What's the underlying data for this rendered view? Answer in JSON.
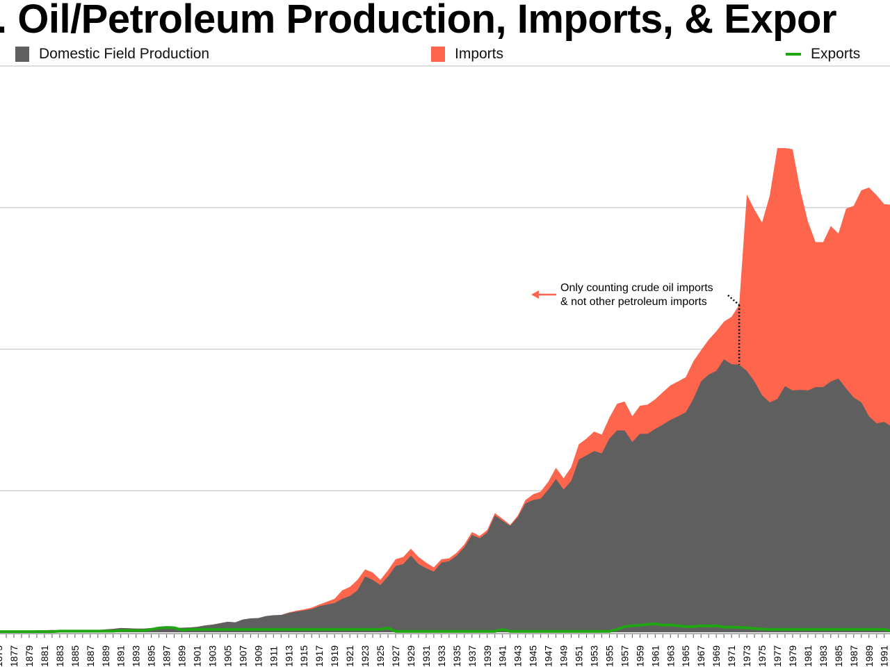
{
  "title": ". Oil/Petroleum Production, Imports, & Expor",
  "colors": {
    "production": "#5f5f5f",
    "imports": "#fd654d",
    "exports": "#1fa612",
    "grid": "#c8c8c8"
  },
  "legend": [
    {
      "label": "Domestic Field Production",
      "marker": "square"
    },
    {
      "label": "Imports",
      "marker": "square"
    },
    {
      "label": "Exports",
      "marker": "line"
    }
  ],
  "annotation": {
    "line1": "Only counting crude oil imports",
    "line2": "& not other petroleum  imports",
    "year": 1972,
    "arrow": "left-arrow"
  },
  "chart_data": {
    "type": "area",
    "stacked": true,
    "title": ". Oil/Petroleum Production, Imports, & Expor",
    "xlabel": "",
    "ylabel": "",
    "x_start": 1875,
    "x_end": 1992,
    "ylim": [
      0,
      20000
    ],
    "gridlines": [
      5000,
      10000,
      15000,
      20000
    ],
    "grid": true,
    "legend_position": "top",
    "series": [
      {
        "name": "Domestic Field Production",
        "type": "area",
        "values": [
          30,
          30,
          40,
          40,
          50,
          70,
          70,
          80,
          70,
          70,
          60,
          80,
          80,
          80,
          100,
          120,
          150,
          140,
          130,
          130,
          150,
          170,
          170,
          150,
          160,
          170,
          190,
          240,
          270,
          320,
          370,
          350,
          450,
          490,
          500,
          570,
          600,
          610,
          680,
          730,
          770,
          820,
          920,
          980,
          1030,
          1180,
          1280,
          1480,
          1970,
          1850,
          1670,
          1970,
          2340,
          2410,
          2710,
          2410,
          2260,
          2140,
          2460,
          2510,
          2710,
          3000,
          3440,
          3320,
          3520,
          4130,
          3940,
          3760,
          4060,
          4550,
          4670,
          4720,
          5040,
          5410,
          5040,
          5340,
          6100,
          6250,
          6400,
          6320,
          6840,
          7130,
          7130,
          6720,
          7010,
          7010,
          7180,
          7330,
          7500,
          7630,
          7770,
          8240,
          8860,
          9100,
          9230,
          9640,
          9470,
          9450,
          9230,
          8860,
          8370,
          8120,
          8240,
          8690,
          8540,
          8560,
          8540,
          8660,
          8660,
          8860,
          8960,
          8610,
          8290,
          8120,
          7630,
          7380,
          7430,
          7260
        ]
      },
      {
        "name": "Imports",
        "type": "area",
        "values": [
          0,
          0,
          0,
          0,
          0,
          0,
          0,
          0,
          0,
          0,
          0,
          0,
          0,
          0,
          0,
          0,
          0,
          0,
          0,
          0,
          0,
          0,
          0,
          0,
          0,
          0,
          0,
          0,
          0,
          0,
          0,
          0,
          0,
          0,
          0,
          0,
          0,
          0,
          20,
          30,
          40,
          50,
          60,
          100,
          150,
          300,
          320,
          370,
          250,
          260,
          180,
          220,
          240,
          250,
          240,
          250,
          200,
          150,
          120,
          100,
          100,
          100,
          100,
          80,
          90,
          80,
          70,
          30,
          60,
          120,
          200,
          250,
          280,
          400,
          400,
          490,
          540,
          590,
          690,
          660,
          740,
          940,
          1020,
          910,
          990,
          1030,
          1050,
          1150,
          1220,
          1230,
          1240,
          1330,
          1100,
          1230,
          1400,
          1330,
          1670,
          2110,
          6230,
          6070,
          6100,
          7300,
          8860,
          8410,
          8520,
          7060,
          5970,
          5120,
          5120,
          5490,
          5120,
          6350,
          6770,
          7490,
          8080,
          8060,
          7690,
          7840
        ]
      },
      {
        "name": "Exports",
        "type": "line",
        "values": [
          20,
          20,
          20,
          20,
          20,
          20,
          20,
          20,
          40,
          40,
          40,
          40,
          40,
          40,
          40,
          40,
          60,
          60,
          60,
          60,
          100,
          150,
          170,
          160,
          80,
          100,
          100,
          100,
          100,
          100,
          100,
          100,
          100,
          100,
          100,
          100,
          100,
          100,
          100,
          100,
          100,
          100,
          100,
          100,
          100,
          100,
          100,
          100,
          100,
          100,
          100,
          150,
          30,
          30,
          30,
          30,
          30,
          30,
          30,
          30,
          30,
          30,
          30,
          30,
          30,
          30,
          100,
          30,
          30,
          30,
          30,
          30,
          30,
          30,
          30,
          30,
          30,
          30,
          30,
          30,
          30,
          100,
          200,
          230,
          250,
          280,
          300,
          250,
          260,
          230,
          200,
          200,
          230,
          220,
          230,
          180,
          180,
          170,
          160,
          130,
          110,
          100,
          100,
          100,
          100,
          100,
          100,
          100,
          100,
          100,
          100,
          100,
          100,
          100,
          100,
          100,
          100,
          40
        ]
      }
    ]
  }
}
